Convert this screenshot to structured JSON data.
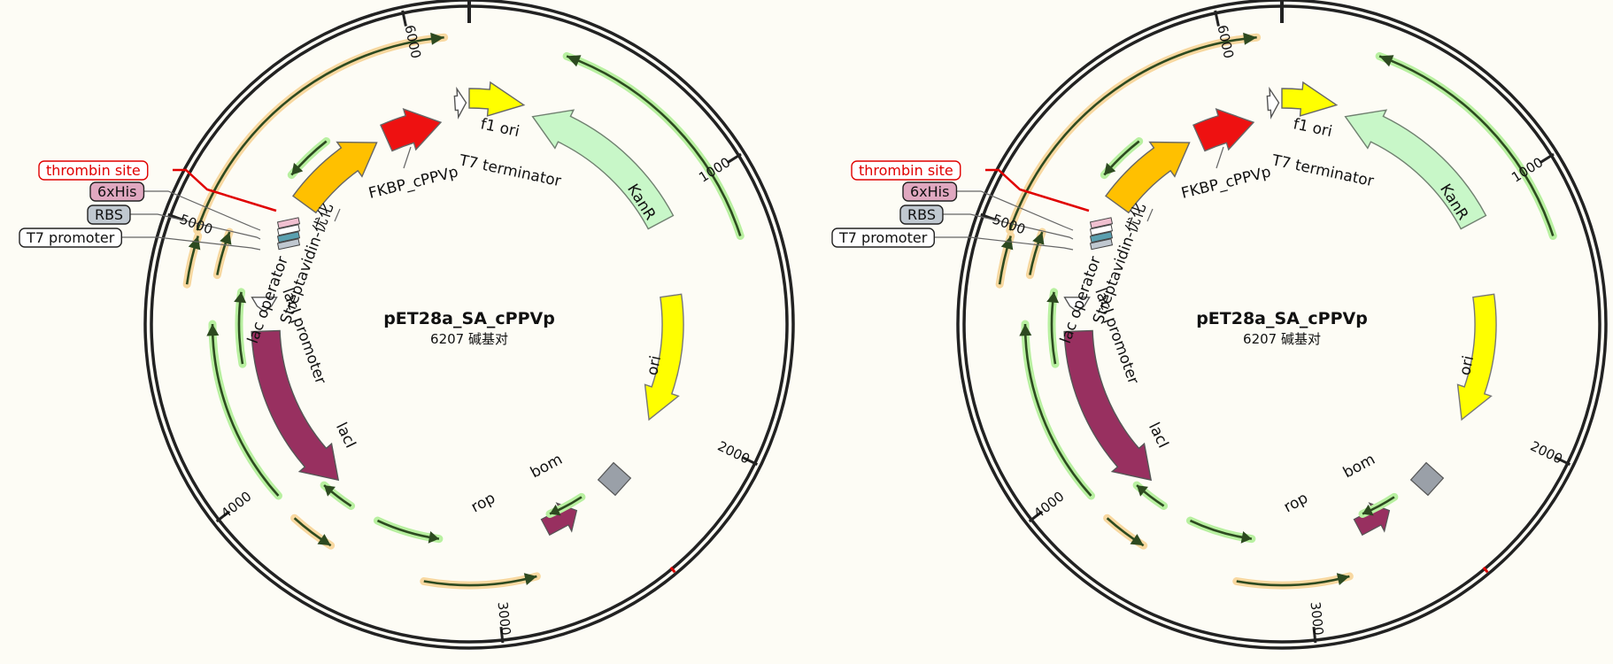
{
  "maps": [
    {
      "name": "pET28a_SA_cPPVp",
      "size_label": "6207 碱基对",
      "total_bp": 6207,
      "ticks": [
        1000,
        2000,
        3000,
        4000,
        5000,
        6000
      ],
      "callouts": [
        {
          "label": "thrombin site",
          "color": "#e00000"
        },
        {
          "label": "6xHis",
          "color": "#222"
        },
        {
          "label": "RBS",
          "color": "#222"
        },
        {
          "label": "T7 promoter",
          "color": "#222"
        }
      ],
      "features": {
        "f1_ori": "f1 ori",
        "t7_terminator": "T7 terminator",
        "fkbp": "FKBP_cPPVp",
        "kanr": "KanR",
        "ori": "ori",
        "lac_operator": "lac operator",
        "streptavidin": "Streptavidin-优化",
        "laci_promoter": "lacI promoter",
        "laci": "lacI",
        "rop": "rop",
        "bom": "bom"
      }
    },
    {
      "name": "pET28a_SA_cPPVp",
      "size_label": "6207 碱基对",
      "total_bp": 6207,
      "ticks": [
        1000,
        2000,
        3000,
        4000,
        5000,
        6000
      ],
      "callouts": [
        {
          "label": "thrombin site",
          "color": "#e00000"
        },
        {
          "label": "6xHis",
          "color": "#222"
        },
        {
          "label": "RBS",
          "color": "#222"
        },
        {
          "label": "T7 promoter",
          "color": "#222"
        }
      ],
      "features": {
        "f1_ori": "f1 ori",
        "t7_terminator": "T7 terminator",
        "fkbp": "FKBP_cPPVp",
        "kanr": "KanR",
        "ori": "ori",
        "lac_operator": "lac operator",
        "streptavidin": "Streptavidin-优化",
        "laci_promoter": "lacI promoter",
        "laci": "lacI",
        "rop": "rop",
        "bom": "bom"
      }
    }
  ],
  "colors": {
    "laci": "#983060",
    "rop": "#983060",
    "fkbp": "#ee1111",
    "streptavidin": "#ffc000",
    "f1_ori": "#ffff00",
    "ori": "#ffff00",
    "kanr": "#c8f7c8",
    "bom": "#9aa0a8",
    "orf_green": "#b8f0a0",
    "orf_orange": "#f8d8a0",
    "his_tag": "#e0a8c0",
    "rbs_box": "#c0c8d0"
  }
}
